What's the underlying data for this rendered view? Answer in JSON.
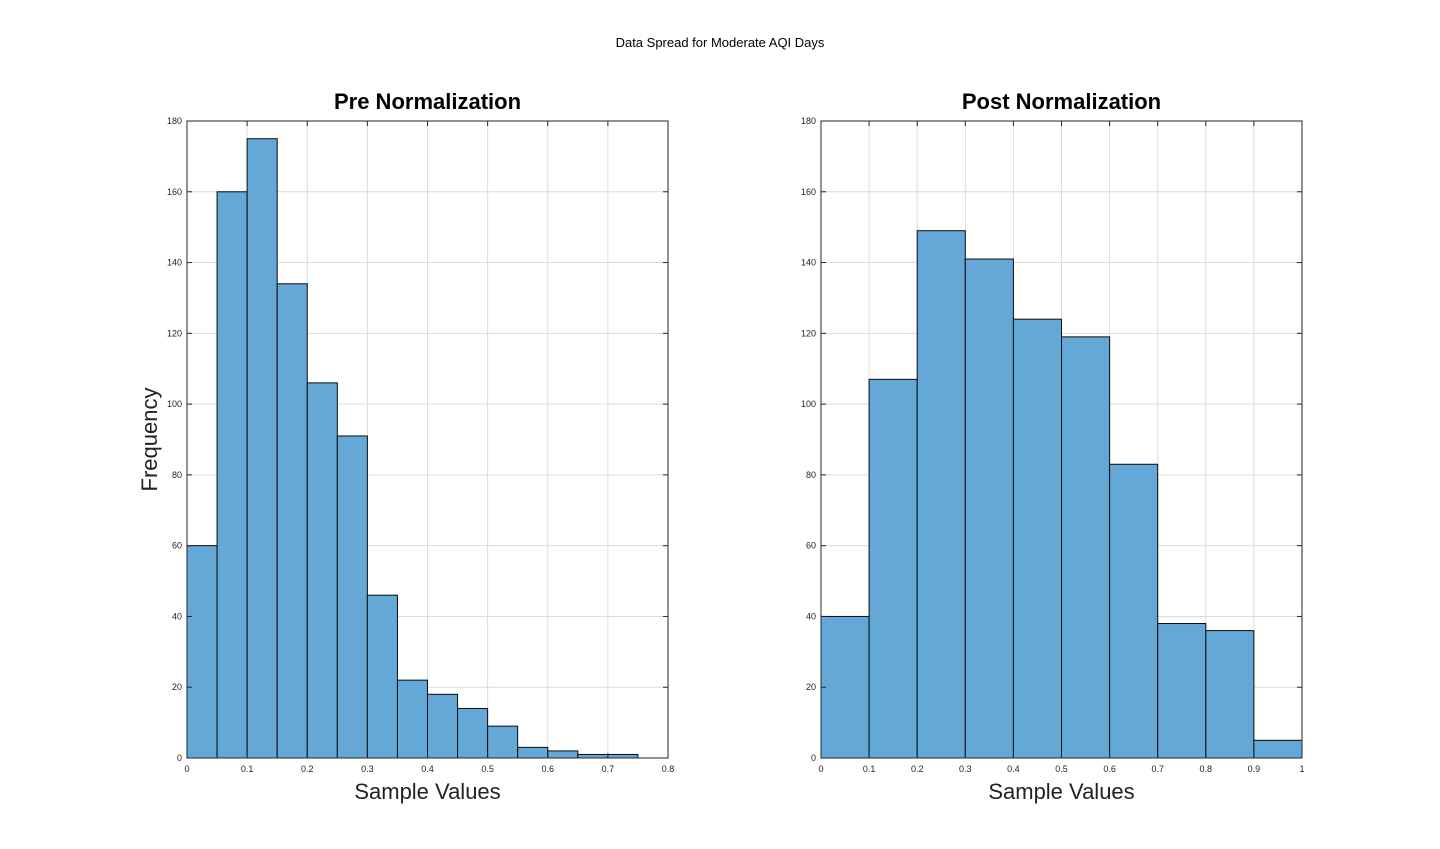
{
  "figure": {
    "title": "Data Spread for Moderate AQI Days"
  },
  "colors": {
    "bar_fill": "#63a8d6",
    "bar_edge": "#0b0b0b",
    "grid": "#dcdcdc",
    "axis": "#262626"
  },
  "chart_data": [
    {
      "type": "bar",
      "title": "Pre Normalization",
      "xlabel": "Sample Values",
      "ylabel": "Frequency",
      "xlim": [
        0,
        0.8
      ],
      "ylim": [
        0,
        180
      ],
      "xticks": [
        "0",
        "0.1",
        "0.2",
        "0.3",
        "0.4",
        "0.5",
        "0.6",
        "0.7",
        "0.8"
      ],
      "yticks": [
        "0",
        "20",
        "40",
        "60",
        "80",
        "100",
        "120",
        "140",
        "160",
        "180"
      ],
      "grid": true,
      "bin_edges": [
        0,
        0.05,
        0.1,
        0.15,
        0.2,
        0.25,
        0.3,
        0.35,
        0.4,
        0.45,
        0.5,
        0.55,
        0.6,
        0.65,
        0.7,
        0.75
      ],
      "values": [
        60,
        160,
        175,
        134,
        106,
        91,
        46,
        22,
        18,
        14,
        9,
        3,
        2,
        1,
        1
      ]
    },
    {
      "type": "bar",
      "title": "Post Normalization",
      "xlabel": "Sample Values",
      "ylabel": "",
      "xlim": [
        0,
        1
      ],
      "ylim": [
        0,
        180
      ],
      "xticks": [
        "0",
        "0.1",
        "0.2",
        "0.3",
        "0.4",
        "0.5",
        "0.6",
        "0.7",
        "0.8",
        "0.9",
        "1"
      ],
      "yticks": [
        "0",
        "20",
        "40",
        "60",
        "80",
        "100",
        "120",
        "140",
        "160",
        "180"
      ],
      "grid": true,
      "bin_edges": [
        0,
        0.1,
        0.2,
        0.3,
        0.4,
        0.5,
        0.6,
        0.7,
        0.8,
        0.9,
        1.0
      ],
      "values": [
        40,
        107,
        149,
        141,
        124,
        119,
        83,
        38,
        36,
        5
      ]
    }
  ]
}
